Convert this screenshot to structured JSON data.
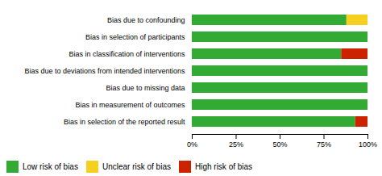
{
  "chart_data": {
    "type": "bar",
    "orientation": "horizontal",
    "stacked": true,
    "categories": [
      "Bias due to confounding",
      "Bias in selection of participants",
      "Bias in classification of interventions",
      "Bias due to deviations from intended interventions",
      "Bias due to missing data",
      "Bias in measurement of outcomes",
      "Bias in selection of the reported result"
    ],
    "series": [
      {
        "name": "Low risk of bias",
        "color": "#33aa33",
        "values": [
          88,
          100,
          85,
          100,
          100,
          100,
          93
        ]
      },
      {
        "name": "Unclear risk of bias",
        "color": "#f5d020",
        "values": [
          12,
          0,
          0,
          0,
          0,
          0,
          0
        ]
      },
      {
        "name": "High risk of bias",
        "color": "#cc2200",
        "values": [
          0,
          0,
          15,
          0,
          0,
          0,
          7
        ]
      }
    ],
    "xlim": [
      0,
      100
    ],
    "xticks": [
      {
        "value": 0,
        "label": "0%"
      },
      {
        "value": 25,
        "label": "25%"
      },
      {
        "value": 50,
        "label": "50%"
      },
      {
        "value": 75,
        "label": "75%"
      },
      {
        "value": 100,
        "label": "100%"
      }
    ],
    "legend": "bottom"
  }
}
